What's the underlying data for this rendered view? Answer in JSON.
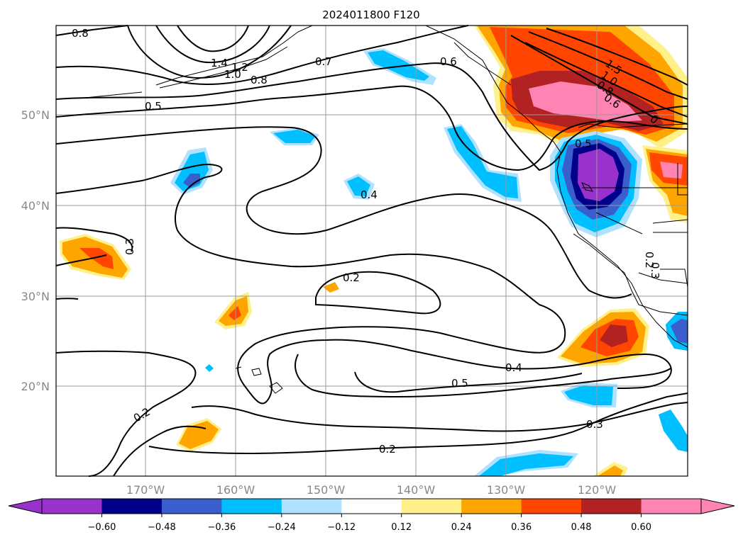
{
  "title": "2024011800 F120",
  "latitude_labels": [
    "50°N",
    "40°N",
    "30°N",
    "20°N"
  ],
  "longitude_labels": [
    "170°W",
    "160°W",
    "150°W",
    "140°W",
    "130°W",
    "120°W"
  ],
  "colorbar": {
    "tick_labels": [
      "−0.60",
      "−0.48",
      "−0.36",
      "−0.24",
      "−0.12",
      "0.12",
      "0.24",
      "0.36",
      "0.48",
      "0.60"
    ],
    "bins": [
      {
        "color": "#9932cc"
      },
      {
        "color": "#00008b"
      },
      {
        "color": "#3a5fcd"
      },
      {
        "color": "#00bfff"
      },
      {
        "color": "#b0e2ff"
      },
      {
        "color": "#ffffff"
      },
      {
        "color": "#fff08a"
      },
      {
        "color": "#ffa500"
      },
      {
        "color": "#ff4500"
      },
      {
        "color": "#b22222"
      },
      {
        "color": "#ff83b3"
      }
    ],
    "under_color": "#9932cc",
    "over_color": "#ff83b3"
  },
  "contour_labels": [
    "0.8",
    "1.4",
    "1.2",
    "1.0",
    "0.8",
    "0.7",
    "0.6",
    "0.5",
    "0.4",
    "0.3",
    "0.2",
    "0.2",
    "0.4",
    "0.5",
    "0.3",
    "0.2",
    "0.2",
    "0.5",
    "0.3",
    "1.5",
    "1.0",
    "0.8",
    "0.6",
    "0"
  ]
}
